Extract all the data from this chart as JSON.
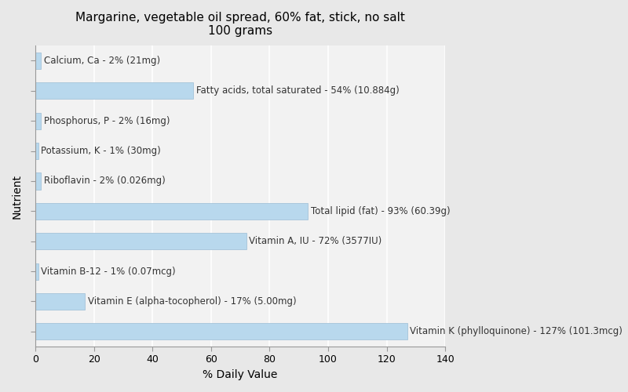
{
  "title": "Margarine, vegetable oil spread, 60% fat, stick, no salt\n100 grams",
  "xlabel": "% Daily Value",
  "ylabel": "Nutrient",
  "xlim": [
    0,
    140
  ],
  "xticks": [
    0,
    20,
    40,
    60,
    80,
    100,
    120,
    140
  ],
  "background_color": "#e8e8e8",
  "plot_background_color": "#f2f2f2",
  "bar_color": "#b8d8ed",
  "bar_edge_color": "#9bbcd4",
  "nutrients": [
    "Calcium, Ca - 2% (21mg)",
    "Fatty acids, total saturated - 54% (10.884g)",
    "Phosphorus, P - 2% (16mg)",
    "Potassium, K - 1% (30mg)",
    "Riboflavin - 2% (0.026mg)",
    "Total lipid (fat) - 93% (60.39g)",
    "Vitamin A, IU - 72% (3577IU)",
    "Vitamin B-12 - 1% (0.07mcg)",
    "Vitamin E (alpha-tocopherol) - 17% (5.00mg)",
    "Vitamin K (phylloquinone) - 127% (101.3mcg)"
  ],
  "values": [
    2,
    54,
    2,
    1,
    2,
    93,
    72,
    1,
    17,
    127
  ],
  "label_color": "#333333",
  "label_fontsize": 8.5,
  "title_fontsize": 11,
  "xlabel_fontsize": 10,
  "ylabel_fontsize": 10,
  "tick_fontsize": 9
}
